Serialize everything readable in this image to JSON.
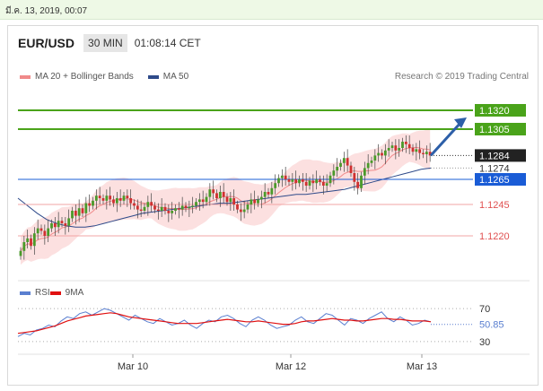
{
  "timestamp": "มี.ค. 13, 2019, 00:07",
  "header": {
    "symbol": "EUR/USD",
    "timeframe": "30 MIN",
    "clock": "01:08:14 CET"
  },
  "legend": {
    "ma20": "MA 20 + Bollinger Bands",
    "ma50": "MA 50"
  },
  "research": "Research © 2019 Trading Central",
  "rsi_legend": {
    "rsi": "RSI",
    "ma9": "9MA"
  },
  "colors": {
    "green": "#4aa31a",
    "blue": "#1a5cd6",
    "red": "#e05050",
    "dark": "#222222",
    "candle_up": "#4a9a2a",
    "candle_down": "#d03030",
    "band": "#fbd5d5",
    "ma50": "#2e4a8a",
    "arrow": "#2d5fa8",
    "rsi": "#5a7fd0",
    "rsi_ma": "#e01010"
  },
  "chart_data": [
    {
      "type": "candlestick",
      "title": "EUR/USD 30 MIN",
      "xlabel": "",
      "ylabel": "",
      "x_ticks": [
        "Mar 10",
        "Mar 12",
        "Mar 13"
      ],
      "ylim": [
        1.119,
        1.134
      ],
      "levels": [
        {
          "value": 1.132,
          "label": "1.1320",
          "style": "green"
        },
        {
          "value": 1.1305,
          "label": "1.1305",
          "style": "green"
        },
        {
          "value": 1.1284,
          "label": "1.1284",
          "style": "dark"
        },
        {
          "value": 1.1274,
          "label": "1.1274",
          "style": "plain"
        },
        {
          "value": 1.1265,
          "label": "1.1265",
          "style": "blue"
        },
        {
          "value": 1.1245,
          "label": "1.1245",
          "style": "red"
        },
        {
          "value": 1.122,
          "label": "1.1220",
          "style": "red"
        }
      ],
      "close_series": [
        1.1208,
        1.1215,
        1.1218,
        1.1212,
        1.1222,
        1.1226,
        1.1224,
        1.122,
        1.1226,
        1.123,
        1.1227,
        1.1232,
        1.123,
        1.1228,
        1.1234,
        1.124,
        1.1236,
        1.1242,
        1.1238,
        1.1246,
        1.1244,
        1.1248,
        1.1252,
        1.125,
        1.1248,
        1.1252,
        1.1249,
        1.1246,
        1.125,
        1.1248,
        1.1252,
        1.125,
        1.1246,
        1.1244,
        1.1241,
        1.124,
        1.1243,
        1.1247,
        1.1244,
        1.1241,
        1.124,
        1.1243,
        1.124,
        1.1238,
        1.124,
        1.1242,
        1.1241,
        1.1244,
        1.1242,
        1.1243,
        1.1244,
        1.1247,
        1.1249,
        1.1247,
        1.1251,
        1.1257,
        1.1254,
        1.125,
        1.1255,
        1.1251,
        1.1247,
        1.125,
        1.1245,
        1.1241,
        1.1239,
        1.1241,
        1.1245,
        1.1249,
        1.1246,
        1.1249,
        1.1251,
        1.1255,
        1.1253,
        1.1258,
        1.1262,
        1.1266,
        1.1268,
        1.1265,
        1.1263,
        1.1265,
        1.1262,
        1.1265,
        1.1263,
        1.126,
        1.1264,
        1.1262,
        1.1265,
        1.1263,
        1.126,
        1.1262,
        1.1268,
        1.1272,
        1.1275,
        1.1278,
        1.1282,
        1.1276,
        1.127,
        1.1263,
        1.1258,
        1.1268,
        1.1274,
        1.1278,
        1.128,
        1.1284,
        1.1286,
        1.1284,
        1.1288,
        1.129,
        1.1292,
        1.1288,
        1.129,
        1.1295,
        1.1293,
        1.129,
        1.1287,
        1.1289,
        1.1286,
        1.1285,
        1.1287,
        1.1284
      ],
      "ma50_series": [
        1.125,
        1.1244,
        1.1238,
        1.1233,
        1.123,
        1.1228,
        1.1227,
        1.1227,
        1.1228,
        1.123,
        1.1232,
        1.1234,
        1.1236,
        1.1238,
        1.1239,
        1.124,
        1.1241,
        1.1242,
        1.1243,
        1.1244,
        1.1245,
        1.1246,
        1.1246,
        1.1247,
        1.1248,
        1.1249,
        1.125,
        1.1251,
        1.1252,
        1.1253,
        1.1253,
        1.1254,
        1.1255,
        1.1256,
        1.1257,
        1.1259,
        1.1261,
        1.1263,
        1.1265,
        1.1267,
        1.1269,
        1.1271,
        1.1273,
        1.1274
      ],
      "current_arrow": {
        "from": 1.1284,
        "to": 1.132
      },
      "ma_20_bands": true
    },
    {
      "type": "line",
      "title": "RSI",
      "x_ticks": [
        "Mar 10",
        "Mar 12",
        "Mar 13"
      ],
      "ylim": [
        20,
        80
      ],
      "levels": [
        70,
        30
      ],
      "current_value": "50.85",
      "series": [
        {
          "name": "RSI",
          "values": [
            36,
            40,
            38,
            44,
            46,
            50,
            48,
            55,
            60,
            58,
            64,
            66,
            62,
            66,
            70,
            68,
            64,
            60,
            56,
            62,
            58,
            54,
            52,
            58,
            54,
            50,
            52,
            56,
            50,
            46,
            52,
            56,
            54,
            60,
            62,
            58,
            52,
            48,
            56,
            60,
            56,
            50,
            46,
            48,
            50,
            56,
            60,
            54,
            52,
            58,
            64,
            62,
            56,
            50,
            58,
            56,
            52,
            58,
            62,
            66,
            58,
            54,
            60,
            56,
            50,
            52,
            56,
            54
          ]
        },
        {
          "name": "9MA",
          "values": [
            40,
            41,
            42,
            43,
            45,
            47,
            49,
            52,
            55,
            57,
            59,
            61,
            62,
            63,
            64,
            65,
            64,
            62,
            60,
            59,
            58,
            57,
            56,
            55,
            54,
            53,
            52,
            52,
            52,
            52,
            53,
            54,
            55,
            56,
            57,
            56,
            55,
            54,
            54,
            55,
            54,
            53,
            52,
            51,
            51,
            52,
            54,
            55,
            55,
            56,
            57,
            58,
            57,
            56,
            56,
            55,
            55,
            56,
            57,
            58,
            58,
            57,
            57,
            56,
            55,
            55,
            55,
            54
          ]
        }
      ]
    }
  ]
}
